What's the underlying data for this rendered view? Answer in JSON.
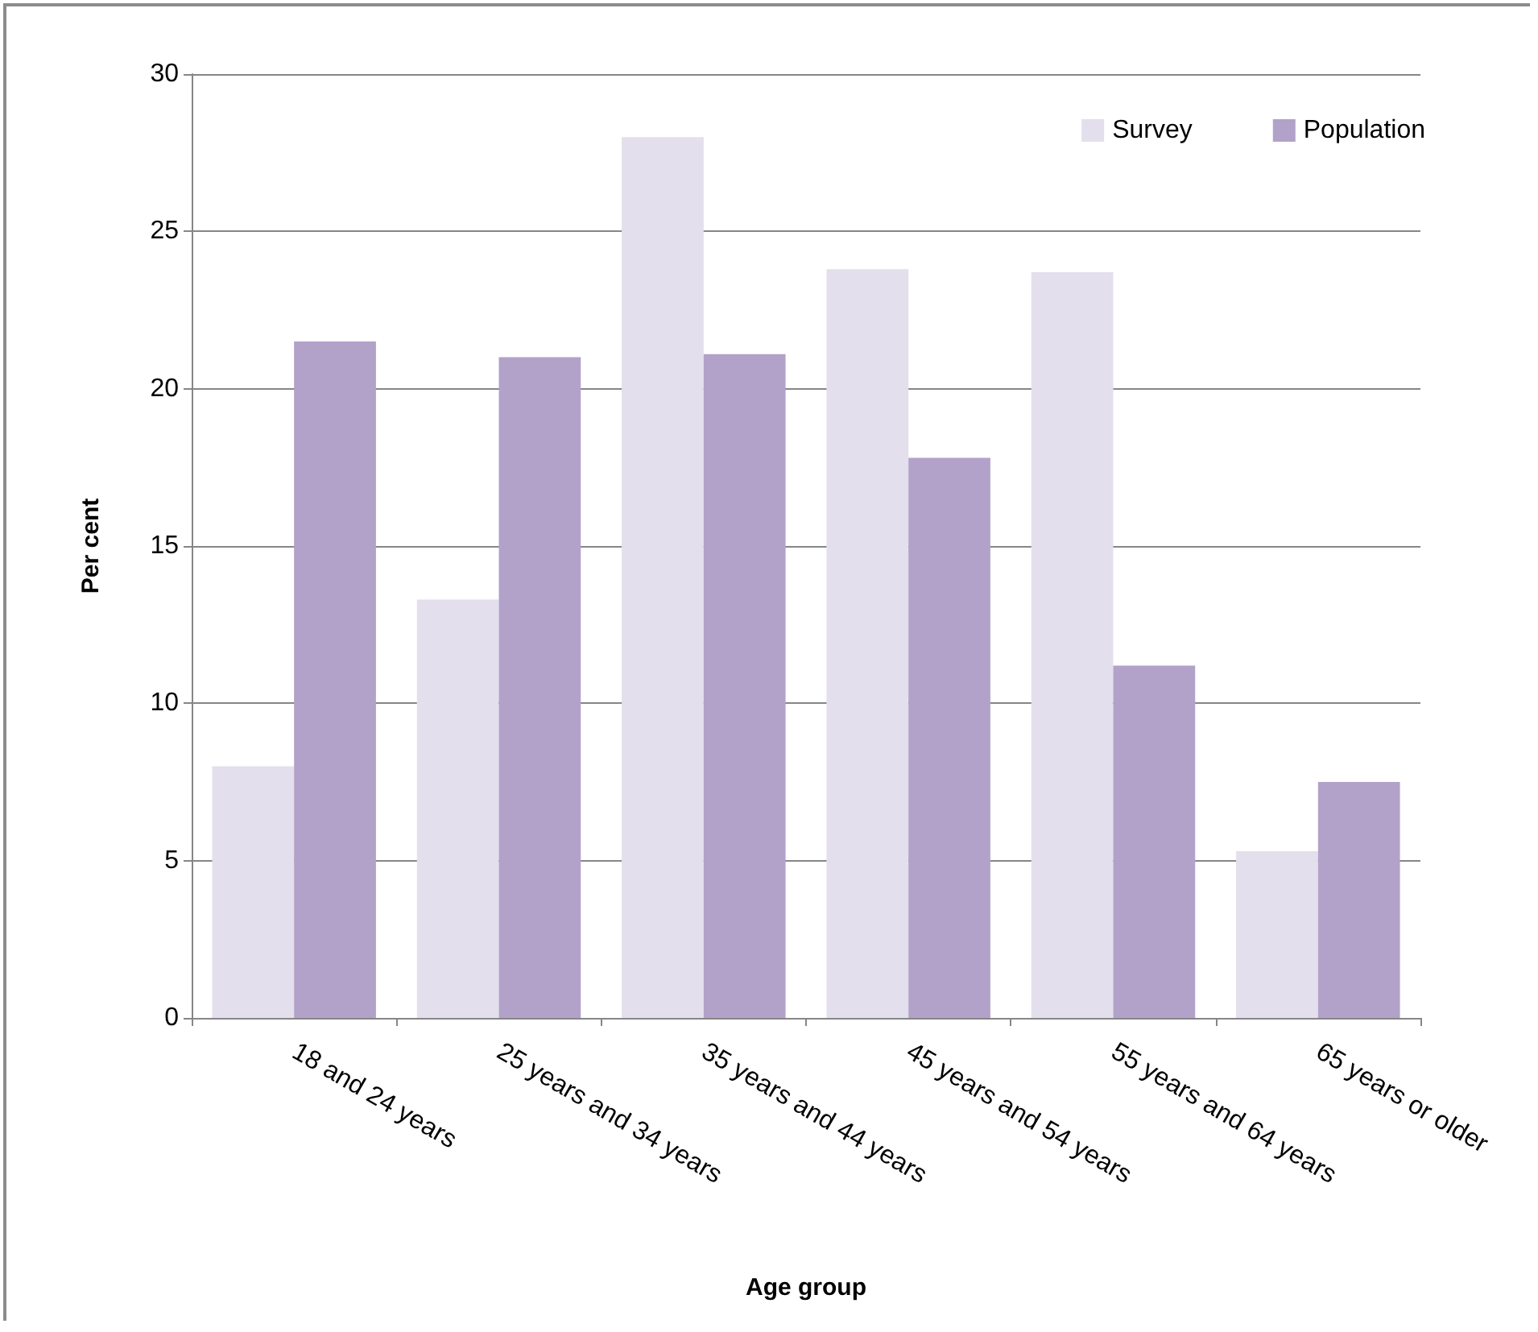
{
  "chart_data": {
    "type": "bar",
    "xlabel": "Age group",
    "ylabel": "Per cent",
    "categories": [
      "18 and 24 years",
      "25 years and 34 years",
      "35 years and 44 years",
      "45 years and 54 years",
      "55 years and 64 years",
      "65 years or older"
    ],
    "series": [
      {
        "name": "Survey",
        "color": "#e3dfec",
        "values": [
          8.0,
          13.3,
          28.0,
          23.8,
          23.7,
          5.3
        ]
      },
      {
        "name": "Population",
        "color": "#b2a2c9",
        "values": [
          21.5,
          21.0,
          21.1,
          17.8,
          11.2,
          7.5
        ]
      }
    ],
    "ylim": [
      0,
      30
    ],
    "yticks": [
      0,
      5,
      10,
      15,
      20,
      25,
      30
    ],
    "grid": "y",
    "legend": "top right"
  }
}
